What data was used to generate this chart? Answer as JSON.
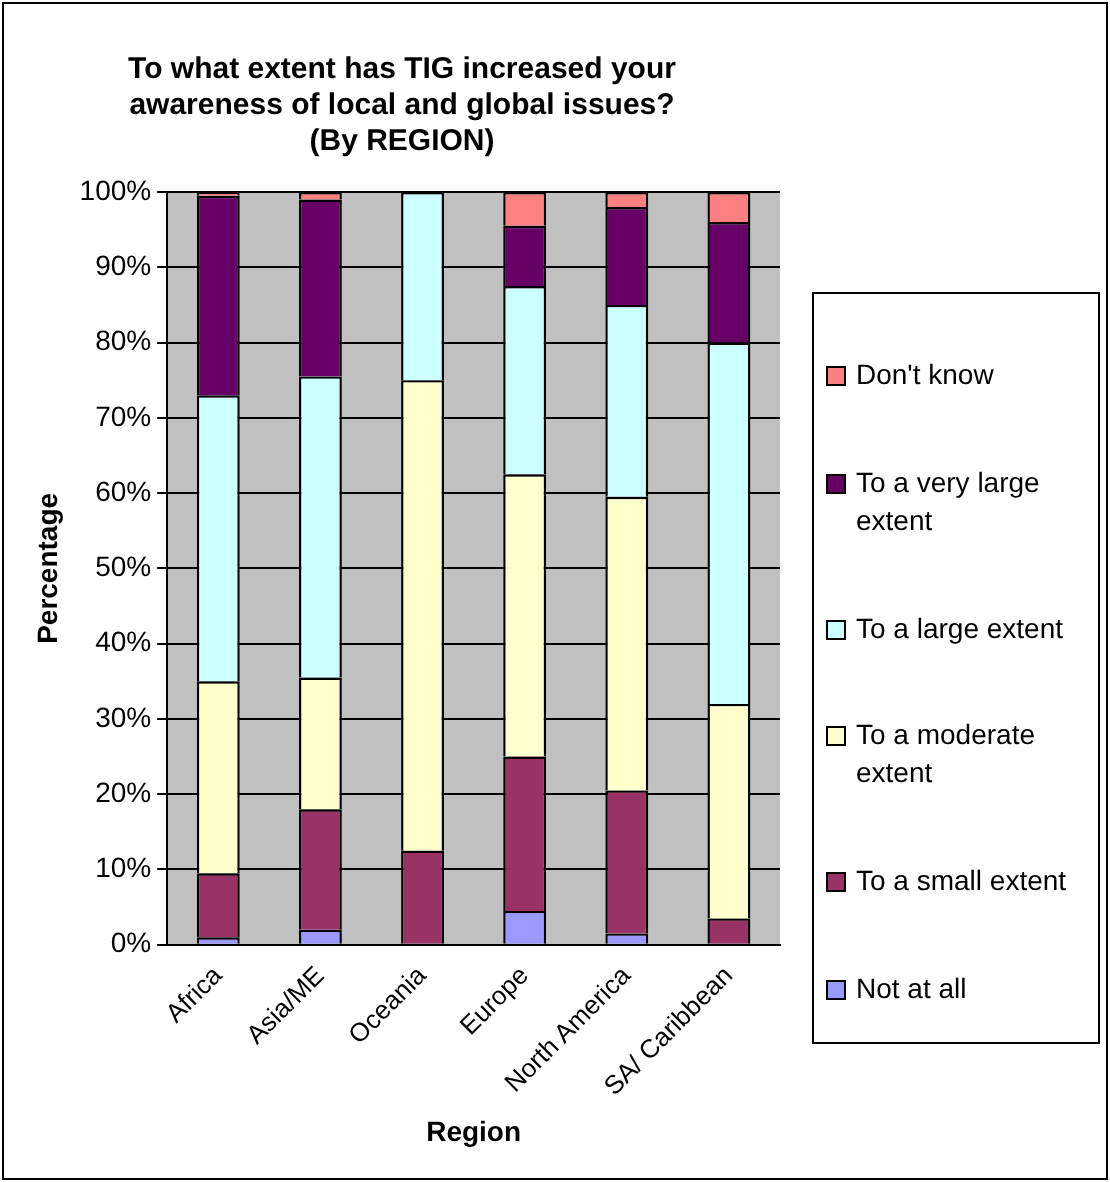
{
  "chart_data": {
    "type": "bar",
    "title": "To what extent has TIG increased your awareness of local and global issues? (By REGION)",
    "xlabel": "Region",
    "ylabel": "Percentage",
    "categories": [
      "Africa",
      "Asia/ME",
      "Oceania",
      "Europe",
      "North America",
      "SA/ Caribbean"
    ],
    "stacked": true,
    "ylim": [
      0,
      100
    ],
    "yticks": [
      {
        "value": 0,
        "label": "0%"
      },
      {
        "value": 10,
        "label": "10%"
      },
      {
        "value": 20,
        "label": "20%"
      },
      {
        "value": 30,
        "label": "30%"
      },
      {
        "value": 40,
        "label": "40%"
      },
      {
        "value": 50,
        "label": "50%"
      },
      {
        "value": 60,
        "label": "60%"
      },
      {
        "value": 70,
        "label": "70%"
      },
      {
        "value": 80,
        "label": "80%"
      },
      {
        "value": 90,
        "label": "90%"
      },
      {
        "value": 100,
        "label": "100%"
      }
    ],
    "grid": "y",
    "legend": "right",
    "series": [
      {
        "name": "Not at all",
        "color": "#9999ff",
        "values": [
          1,
          2,
          0,
          4.5,
          1.5,
          0
        ]
      },
      {
        "name": "To a small extent",
        "color": "#993366",
        "values": [
          8.5,
          16,
          12.5,
          20.5,
          19,
          3.5
        ]
      },
      {
        "name": "To a moderate extent",
        "color": "#ffffcc",
        "values": [
          25.5,
          17.5,
          62.5,
          37.5,
          39,
          28.5
        ]
      },
      {
        "name": "To a large extent",
        "color": "#ccffff",
        "values": [
          38,
          40,
          25,
          25,
          25.5,
          48
        ]
      },
      {
        "name": "To a very large extent",
        "color": "#660066",
        "values": [
          26.5,
          23.5,
          0,
          8,
          13,
          16
        ]
      },
      {
        "name": "Don't know",
        "color": "#ff8080",
        "values": [
          0.5,
          1,
          0,
          4.5,
          2,
          4
        ]
      }
    ]
  }
}
